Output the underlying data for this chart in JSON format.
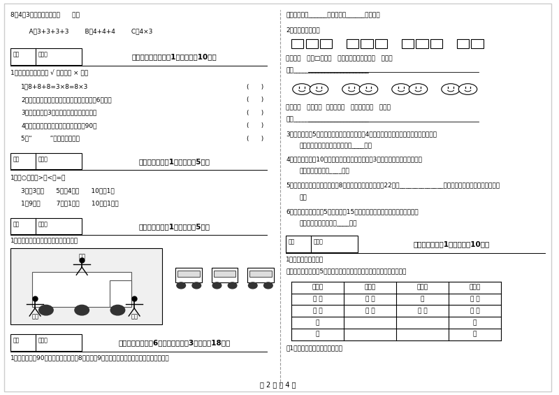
{
  "bg_color": "#ffffff",
  "page_width": 8.0,
  "page_height": 5.65,
  "dpi": 100,
  "section8_text": "8．4个3列成加法算式是（      ）。",
  "section8_options": "    A、3+3+3+3        B、4+4+4        C、4×3",
  "section5_header": "五、判断对与错（共1大题，共计10分）",
  "section5_sub": "1．判断题：（对的打 √ ，错的打 × ）。",
  "section5_items": [
    "1．8+8+8=3×8=8×3",
    "2．有三个同学，每两人握一次手，一共要握6次手。",
    "3．钟表上显示3时，时针和分针成一直角。",
    "4．最小的两位数和最大的两位数相差90。",
    "5．“         ”这是一条线段。"
  ],
  "section6_header": "六、比一比（共1大题，共计5分）",
  "section6_sub": "1．在○里填上>、<或=。",
  "section6_items": [
    "3厘米3分米      5毫米4厘米      10厘米1米",
    "1米9分米        7毫米1分米      10厘米1分米"
  ],
  "section7_header": "七、连一连（共1大题，共计5分）",
  "section7_sub": "1．请你连一连，下面分别是谁看到的？",
  "scene_labels": [
    "小红",
    "小东",
    "小明"
  ],
  "section8b_header": "八、解决问题（八6小题，每题卓小3分，共计18分）",
  "section8b_item1": "1．小红看一朦90页的书，平均每天看8页，看了9天，小红看了多少页？还剩多少页没看？",
  "right_answer1": "答：小红看了______页，还剩下______页没看。",
  "right_q2_header": "2．我会解决问题。",
  "right_q2_sub1": "一共有（   ）个□，每（   ）个一组，平均分成（   ）组。",
  "right_q2_liushi": "列式________________________",
  "right_q2_smiley_text": "一共有（   ）个笑脸  平均分成（   ）组，每组（   ）个。",
  "right_q2_liushi2": "列式________________________",
  "right_q3": "3．一小桶牛奙5元錢，一大桶牛奙是一小桶的4倍，买一大一小两桶牛奙共需要多少錢？",
  "right_q3_ans": "答：买一大一小两桶牛奙共需要____元。",
  "right_q4": "4．小东上午做了10道数学题，下午做的比上午多3道，小东一共做了多少道？",
  "right_q4_ans": "答：小东一共做了____道。",
  "right_q5": "5．同学们剪小旗，小黄旗有　8面，小红旗的比小黄旗多22面，______________？（先提出问题，再列式计算。）",
  "right_q5_ans": "答：",
  "right_q6": "6．王老师在文具店买5张绿卡纸，15张红卡纸，红卡纸是绿卡纸的多少倍？",
  "right_q6_ans": "答：红卡纸是绿卡纸的____倍。",
  "section10_header": "十、综合题（共1大题，共计10分）",
  "section10_sub1": "1．我是小小统计员。",
  "section10_sub2": "欢欢站在马路边，对5分钟内经过的车辆进行了统计，情况如下图所示。",
  "section10_table_headers": [
    "小汽车",
    "面包车",
    "中巴车",
    "电瑾车"
  ],
  "section10_col1_tally": [
    "正",
    "正",
    "正",
    "正"
  ],
  "section10_col2_tally": [
    "正",
    "正"
  ],
  "section10_col3_tally": [
    "正",
    "正",
    "下"
  ],
  "section10_col4_tally": [
    "正",
    "下"
  ],
  "section10_col1_extra": [
    "正",
    "正"
  ],
  "section10_col4_extra": [
    "正",
    "正"
  ],
  "section10_note": "（1）把统计的结果填在下表中。",
  "page_footer": "第 2 页 共 4 页",
  "score_box_label": "得分",
  "review_box_label": "评卷人",
  "tally_cols": [
    [
      "正",
      "正",
      "正",
      "正"
    ],
    [
      "正",
      "正",
      "下",
      ""
    ],
    [
      "正",
      "正",
      "",
      ""
    ],
    [
      "正",
      "下",
      "正",
      "正"
    ]
  ],
  "tally_col2": [
    "正",
    "正"
  ],
  "tally_display": [
    [
      "正 正",
      "正 正",
      "正",
      "正 正"
    ],
    [
      "正 正",
      "正 下",
      "正 下",
      "正 下"
    ],
    [
      "正",
      "",
      "",
      "正"
    ],
    [
      "正",
      "",
      "",
      "正"
    ]
  ]
}
